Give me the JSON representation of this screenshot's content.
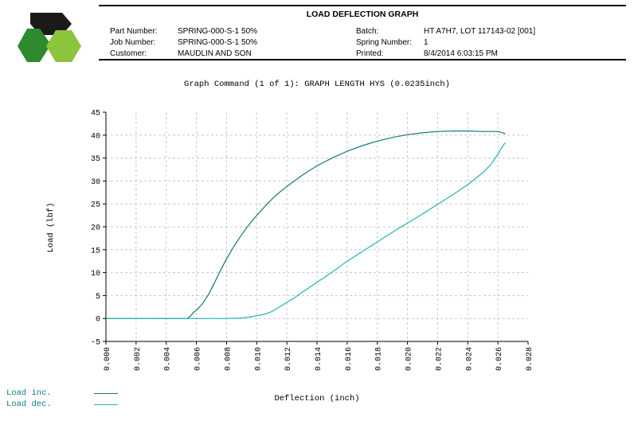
{
  "header": {
    "title": "LOAD DEFLECTION GRAPH",
    "left": [
      {
        "label": "Part Number:",
        "value": "SPRING-000-S-1 50%"
      },
      {
        "label": "Job Number:",
        "value": "SPRING-000-S-1 50%"
      },
      {
        "label": "Customer:",
        "value": "MAUDLIN AND SON"
      }
    ],
    "right": [
      {
        "label": "Batch:",
        "value": "HT A7H7, LOT 117143-02 [001]"
      },
      {
        "label": "Spring Number:",
        "value": "1"
      },
      {
        "label": "Printed:",
        "value": "8/4/2014 6:03:15 PM"
      }
    ]
  },
  "graph_command": "Graph Command (1 of 1): GRAPH LENGTH HYS (0.0235inch)",
  "colors": {
    "load_inc": "#147878",
    "load_dec": "#20b4b4",
    "grid": "#c8c8c8",
    "logo_dark": "#1a1a1a",
    "logo_green_dark": "#2d8a2d",
    "logo_green_light": "#8cc43c"
  },
  "chart_data": {
    "type": "line",
    "xlabel": "Deflection (inch)",
    "ylabel": "Load (lbf)",
    "xlim": [
      0,
      0.028
    ],
    "ylim": [
      -5,
      45
    ],
    "xticks": [
      "0.000",
      "0.002",
      "0.004",
      "0.006",
      "0.008",
      "0.010",
      "0.012",
      "0.014",
      "0.016",
      "0.018",
      "0.020",
      "0.022",
      "0.024",
      "0.026",
      "0.028"
    ],
    "yticks": [
      "-5",
      "0",
      "5",
      "10",
      "15",
      "20",
      "25",
      "30",
      "35",
      "40",
      "45"
    ],
    "grid": true,
    "legend_position": "bottom-left",
    "series": [
      {
        "name": "Load inc.",
        "x": [
          0.0,
          0.001,
          0.002,
          0.003,
          0.004,
          0.005,
          0.0054,
          0.0056,
          0.0058,
          0.006,
          0.0064,
          0.0068,
          0.0072,
          0.0076,
          0.008,
          0.0085,
          0.009,
          0.0095,
          0.01,
          0.0105,
          0.011,
          0.0115,
          0.012,
          0.0125,
          0.013,
          0.0135,
          0.014,
          0.015,
          0.016,
          0.017,
          0.018,
          0.019,
          0.02,
          0.021,
          0.022,
          0.023,
          0.024,
          0.025,
          0.026,
          0.0265
        ],
        "values": [
          0,
          0,
          0,
          0,
          0,
          0,
          0,
          0.5,
          1.3,
          1.8,
          3.2,
          5.2,
          7.8,
          10.5,
          13.0,
          15.8,
          18.3,
          20.5,
          22.5,
          24.3,
          26.0,
          27.5,
          28.8,
          30.0,
          31.2,
          32.3,
          33.3,
          35.0,
          36.5,
          37.7,
          38.7,
          39.5,
          40.1,
          40.5,
          40.8,
          40.9,
          40.9,
          40.8,
          40.8,
          40.3
        ]
      },
      {
        "name": "Load dec.",
        "x": [
          0.0,
          0.001,
          0.002,
          0.003,
          0.004,
          0.005,
          0.006,
          0.007,
          0.008,
          0.009,
          0.0095,
          0.01,
          0.0105,
          0.011,
          0.0115,
          0.012,
          0.0125,
          0.013,
          0.014,
          0.015,
          0.016,
          0.017,
          0.018,
          0.019,
          0.02,
          0.021,
          0.022,
          0.023,
          0.024,
          0.025,
          0.0255,
          0.026,
          0.0262,
          0.0264,
          0.0265
        ],
        "values": [
          0,
          0,
          0,
          0,
          0,
          0,
          0,
          0,
          0,
          0.1,
          0.3,
          0.6,
          0.9,
          1.5,
          2.5,
          3.5,
          4.5,
          5.7,
          7.9,
          10.1,
          12.5,
          14.6,
          16.7,
          18.8,
          20.8,
          22.8,
          24.9,
          27.0,
          29.2,
          31.8,
          33.5,
          35.8,
          37.0,
          38.0,
          38.3
        ]
      }
    ]
  }
}
